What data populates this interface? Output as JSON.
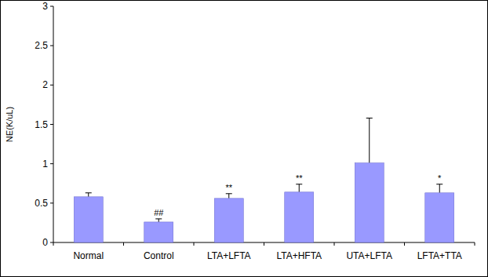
{
  "chart_data": {
    "type": "bar",
    "y_label": "NE(K/uL)",
    "categories": [
      "Normal",
      "Control",
      "LTA+LFTA",
      "LTA+HFTA",
      "UTA+LFTA",
      "LFTA+TTA"
    ],
    "values": [
      0.58,
      0.26,
      0.56,
      0.64,
      1.01,
      0.63
    ],
    "errors": [
      0.05,
      0.04,
      0.06,
      0.1,
      0.57,
      0.11
    ],
    "annotations": [
      null,
      "##",
      "**",
      "**",
      null,
      "*"
    ],
    "color": "#9999ff",
    "ylim": [
      0,
      3
    ],
    "yticks": [
      0,
      0.5,
      1,
      1.5,
      2,
      2.5,
      3
    ],
    "grid": false
  }
}
